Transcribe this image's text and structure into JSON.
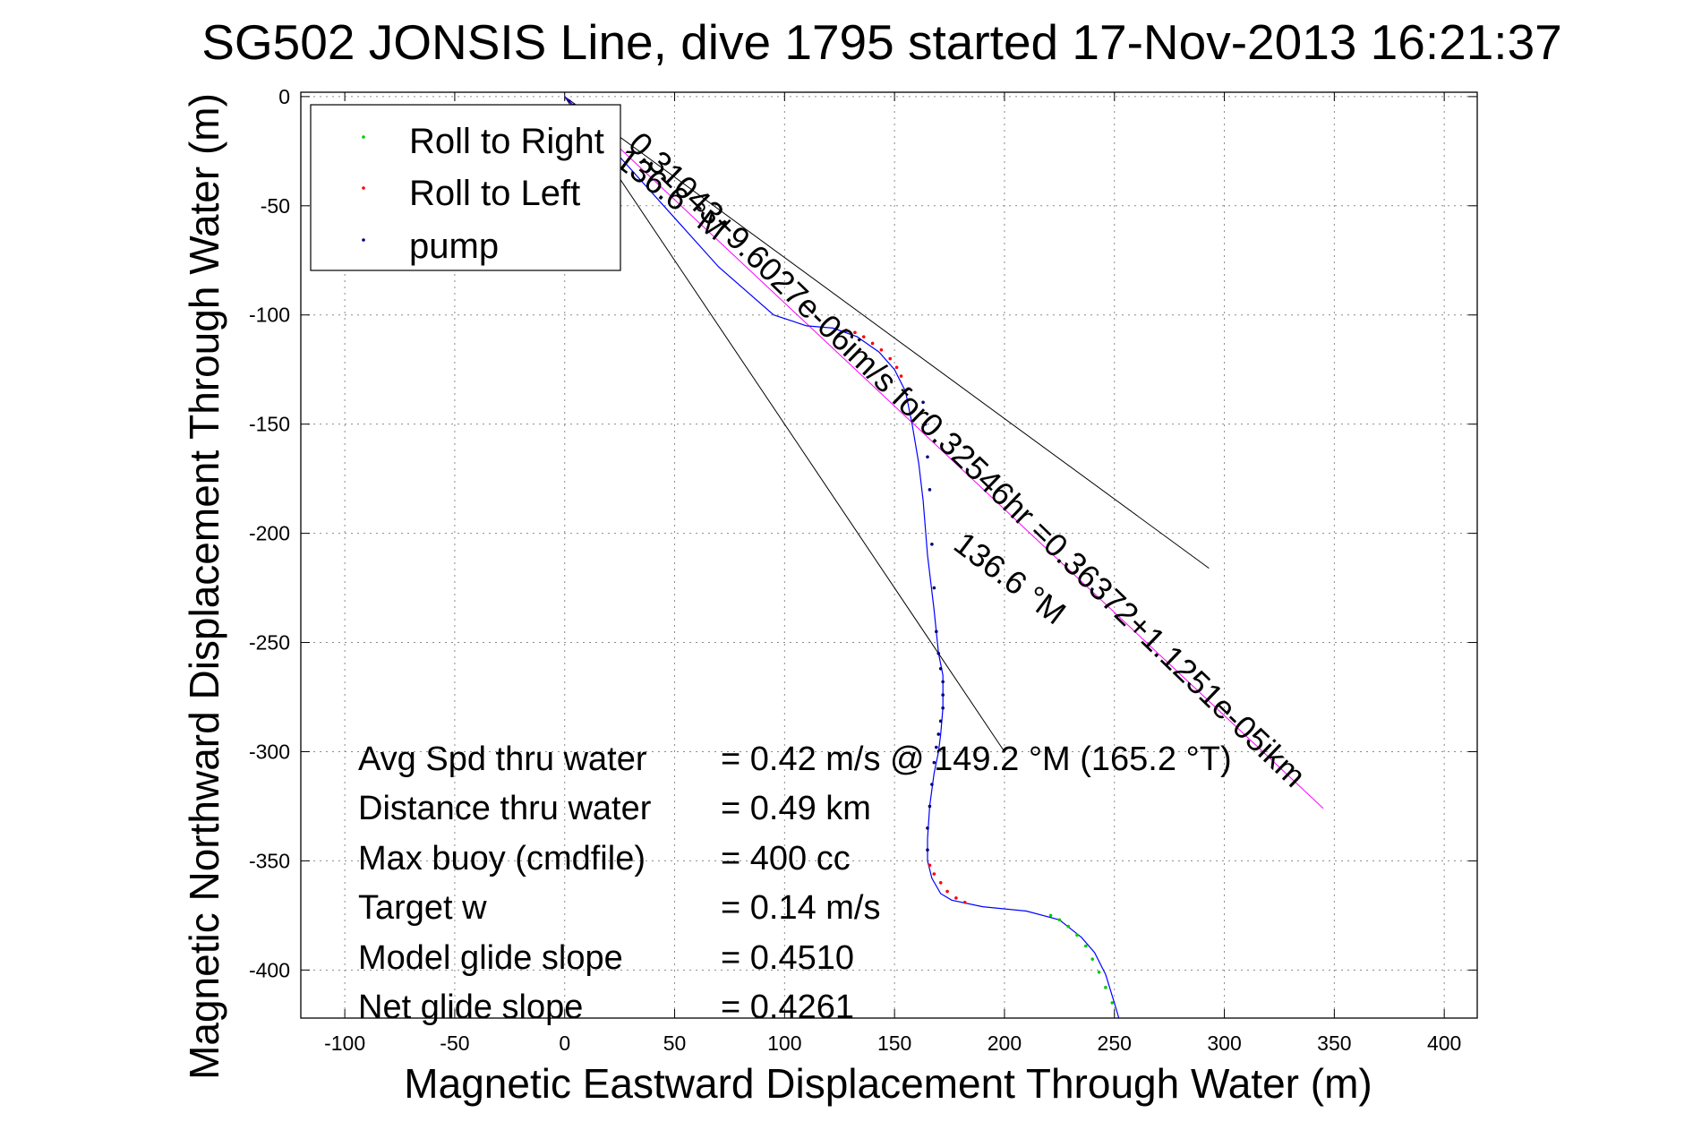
{
  "chart_data": {
    "type": "line",
    "title": "SG502 JONSIS Line, dive 1795 started 17-Nov-2013 16:21:37",
    "xlabel": "Magnetic Eastward Displacement Through Water (m)",
    "ylabel": "Magnetic Northward Displacement Through Water (m)",
    "xlim": [
      -120,
      415
    ],
    "ylim": [
      -422,
      2
    ],
    "xticks": [
      -100,
      -50,
      0,
      50,
      100,
      150,
      200,
      250,
      300,
      350,
      400
    ],
    "yticks": [
      0,
      -50,
      -100,
      -150,
      -200,
      -250,
      -300,
      -350,
      -400
    ],
    "grid": true,
    "legend_position": "top-left",
    "legend": [
      {
        "label": "Roll to Right",
        "color": "#00cc00"
      },
      {
        "label": "Roll to Left",
        "color": "#ff0000"
      },
      {
        "label": "pump",
        "color": "#000080"
      }
    ],
    "track_color": "#0000ff",
    "track": {
      "x": [
        0,
        20,
        45,
        70,
        95,
        110,
        122,
        133,
        143,
        150,
        155,
        158,
        161,
        163,
        165,
        168,
        170,
        172,
        172,
        171,
        170,
        168,
        166,
        165,
        165,
        167,
        171,
        176,
        190,
        210,
        225,
        235,
        241,
        246,
        250,
        252
      ],
      "y": [
        0,
        -22,
        -50,
        -78,
        -100,
        -105,
        -106,
        -110,
        -117,
        -125,
        -135,
        -150,
        -168,
        -185,
        -210,
        -235,
        -255,
        -265,
        -280,
        -292,
        -300,
        -310,
        -325,
        -340,
        -350,
        -358,
        -365,
        -368,
        -371,
        -373,
        -377,
        -385,
        -392,
        -402,
        -415,
        -422
      ]
    },
    "heading_line": {
      "x": [
        0,
        345
      ],
      "y": [
        0,
        -326
      ],
      "color": "#ff00ff"
    },
    "cone_lines": [
      {
        "x": [
          0,
          293
        ],
        "y": [
          0,
          -216
        ]
      },
      {
        "x": [
          0,
          200
        ],
        "y": [
          0,
          -300
        ]
      }
    ],
    "roll_right_points": {
      "x": [
        221,
        225,
        229,
        233,
        237,
        240,
        243,
        246,
        249
      ],
      "y": [
        -375,
        -377,
        -380,
        -384,
        -389,
        -395,
        -401,
        -408,
        -415
      ]
    },
    "roll_left_points": {
      "x": [
        128,
        132,
        136,
        140,
        144,
        148,
        151,
        153,
        166,
        168,
        171,
        174,
        178,
        182
      ],
      "y": [
        -107,
        -108,
        -110,
        -113,
        -116,
        -120,
        -124,
        -128,
        -352,
        -356,
        -360,
        -364,
        -367,
        -369
      ]
    },
    "pump_points": {
      "x": [
        2,
        4,
        6,
        8,
        163,
        164,
        165,
        166,
        167,
        168,
        169,
        170,
        171,
        172,
        172,
        172,
        171,
        170,
        169,
        168,
        167,
        166,
        165,
        165
      ],
      "y": [
        -2,
        -4,
        -6,
        -8,
        -140,
        -150,
        -165,
        -180,
        -205,
        -225,
        -245,
        -255,
        -262,
        -268,
        -274,
        -280,
        -286,
        -292,
        -298,
        -305,
        -315,
        -325,
        -335,
        -345
      ]
    },
    "annotations": {
      "heading_label_upper": "136.6 °M",
      "speed_label": "0.31043+9.6027e-06im/s for0.32546hr =0.36372+1.1251e-05ikm",
      "heading_label_lower": "136.6 °M"
    },
    "stats": [
      {
        "label": "Avg Spd thru water",
        "value": "=  0.42 m/s @ 149.2 °M (165.2 °T)"
      },
      {
        "label": "Distance thru water",
        "value": "=  0.49 km"
      },
      {
        "label": "Max buoy (cmdfile)",
        "value": "= 400 cc"
      },
      {
        "label": "Target w",
        "value": "= 0.14 m/s"
      },
      {
        "label": "Model glide slope",
        "value": "= 0.4510"
      },
      {
        "label": "Net glide slope",
        "value": "= 0.4261"
      }
    ]
  }
}
